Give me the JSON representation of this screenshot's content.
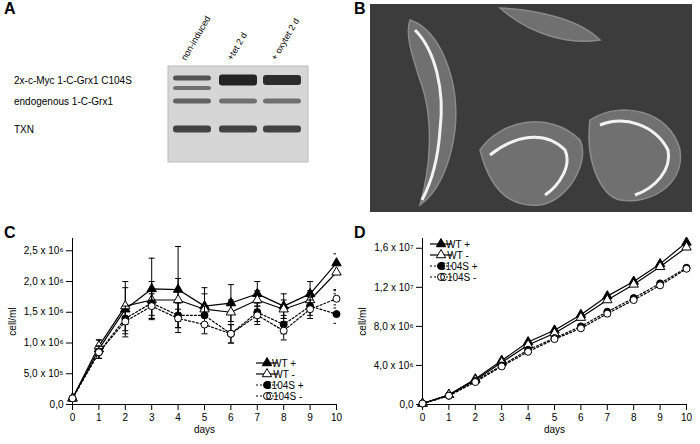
{
  "panel_a": {
    "title": "A",
    "lanes": [
      "non-induced",
      "+tet 2 d",
      "+ oxytet 2 d"
    ],
    "bands": [
      "2x-c-Myc 1-C-Grx1 C104S",
      "endogenous 1-C-Grx1",
      "TXN"
    ]
  },
  "panel_b": {
    "title": "B"
  },
  "chart_data": [
    {
      "type": "line",
      "title": "C",
      "x_label": "days",
      "y_label": "cell/ml",
      "x": [
        0,
        1,
        2,
        3,
        4,
        5,
        6,
        7,
        8,
        9,
        10
      ],
      "xlim": [
        0,
        10
      ],
      "xticks": [
        0,
        1,
        2,
        3,
        4,
        5,
        6,
        7,
        8,
        9,
        10
      ],
      "ylim": [
        0,
        2700000
      ],
      "yticks": [
        {
          "value": 0,
          "label": "0,0"
        },
        {
          "value": 500000,
          "label": "5,0 x 10⁵"
        },
        {
          "value": 1000000,
          "label": "1,0 x 10⁶"
        },
        {
          "value": 1500000,
          "label": "1,5 x 10⁶"
        },
        {
          "value": 2000000,
          "label": "2,0 x 10⁶"
        },
        {
          "value": 2500000,
          "label": "2,5 x 10⁶"
        }
      ],
      "legend": "lower right",
      "series": [
        {
          "name": "WT +",
          "color": "#000000",
          "marker": "triangle",
          "line_style": "solid",
          "values": [
            100000,
            900000,
            1550000,
            1880000,
            1870000,
            1600000,
            1650000,
            1800000,
            1600000,
            1800000,
            2300000
          ],
          "errors": [
            0,
            150000,
            450000,
            500000,
            700000,
            300000,
            300000,
            200000,
            200000,
            200000,
            500000
          ]
        },
        {
          "name": "WT -",
          "color": "#000000",
          "marker": "triangle-open",
          "line_style": "solid",
          "values": [
            100000,
            950000,
            1600000,
            1700000,
            1700000,
            1550000,
            1500000,
            1700000,
            1550000,
            1700000,
            2150000
          ],
          "errors": [
            0,
            100000,
            300000,
            300000,
            350000,
            250000,
            200000,
            150000,
            150000,
            150000,
            300000
          ]
        },
        {
          "name": "C104S +",
          "color": "#000000",
          "marker": "circle",
          "line_style": "dotted",
          "values": [
            100000,
            850000,
            1400000,
            1650000,
            1450000,
            1450000,
            1150000,
            1500000,
            1300000,
            1600000,
            1470000
          ],
          "errors": [
            0,
            100000,
            200000,
            200000,
            200000,
            150000,
            150000,
            150000,
            150000,
            150000,
            150000
          ]
        },
        {
          "name": "C104S -",
          "color": "#000000",
          "marker": "circle-open",
          "line_style": "dotted",
          "values": [
            100000,
            850000,
            1350000,
            1600000,
            1400000,
            1300000,
            1150000,
            1450000,
            1200000,
            1550000,
            1720000
          ],
          "errors": [
            0,
            100000,
            200000,
            200000,
            150000,
            150000,
            150000,
            150000,
            150000,
            150000,
            150000
          ]
        }
      ]
    },
    {
      "type": "line",
      "title": "D",
      "x_label": "days",
      "y_label": "cell/ml",
      "x": [
        0,
        1,
        2,
        3,
        4,
        5,
        6,
        7,
        8,
        9,
        10
      ],
      "xlim": [
        0,
        10
      ],
      "xticks": [
        0,
        1,
        2,
        3,
        4,
        5,
        6,
        7,
        8,
        9,
        10
      ],
      "ylim": [
        0,
        17000000
      ],
      "yticks": [
        {
          "value": 0,
          "label": "0,0"
        },
        {
          "value": 4000000,
          "label": "4,0 x 10⁶"
        },
        {
          "value": 8000000,
          "label": "8,0 x 10⁶"
        },
        {
          "value": 12000000,
          "label": "1,2 x 10⁷"
        },
        {
          "value": 16000000,
          "label": "1,6 x 10⁷"
        }
      ],
      "legend": "upper left",
      "series": [
        {
          "name": "WT +",
          "color": "#000000",
          "marker": "triangle",
          "line_style": "solid",
          "values": [
            100000,
            1000000,
            2600000,
            4500000,
            6400000,
            7600000,
            9200000,
            11100000,
            12600000,
            14400000,
            16600000
          ]
        },
        {
          "name": "WT -",
          "color": "#000000",
          "marker": "triangle-open",
          "line_style": "solid",
          "values": [
            100000,
            1000000,
            2500000,
            4300000,
            6100000,
            7300000,
            8900000,
            10700000,
            12300000,
            14100000,
            16100000
          ]
        },
        {
          "name": "C104S +",
          "color": "#000000",
          "marker": "circle",
          "line_style": "dotted",
          "values": [
            100000,
            900000,
            2400000,
            4000000,
            5600000,
            6800000,
            8000000,
            9500000,
            10900000,
            12400000,
            14000000
          ]
        },
        {
          "name": "C104S -",
          "color": "#000000",
          "marker": "circle-open",
          "line_style": "dotted",
          "values": [
            100000,
            900000,
            2300000,
            3900000,
            5400000,
            6700000,
            7800000,
            9300000,
            10700000,
            12200000,
            13900000
          ]
        }
      ]
    }
  ]
}
